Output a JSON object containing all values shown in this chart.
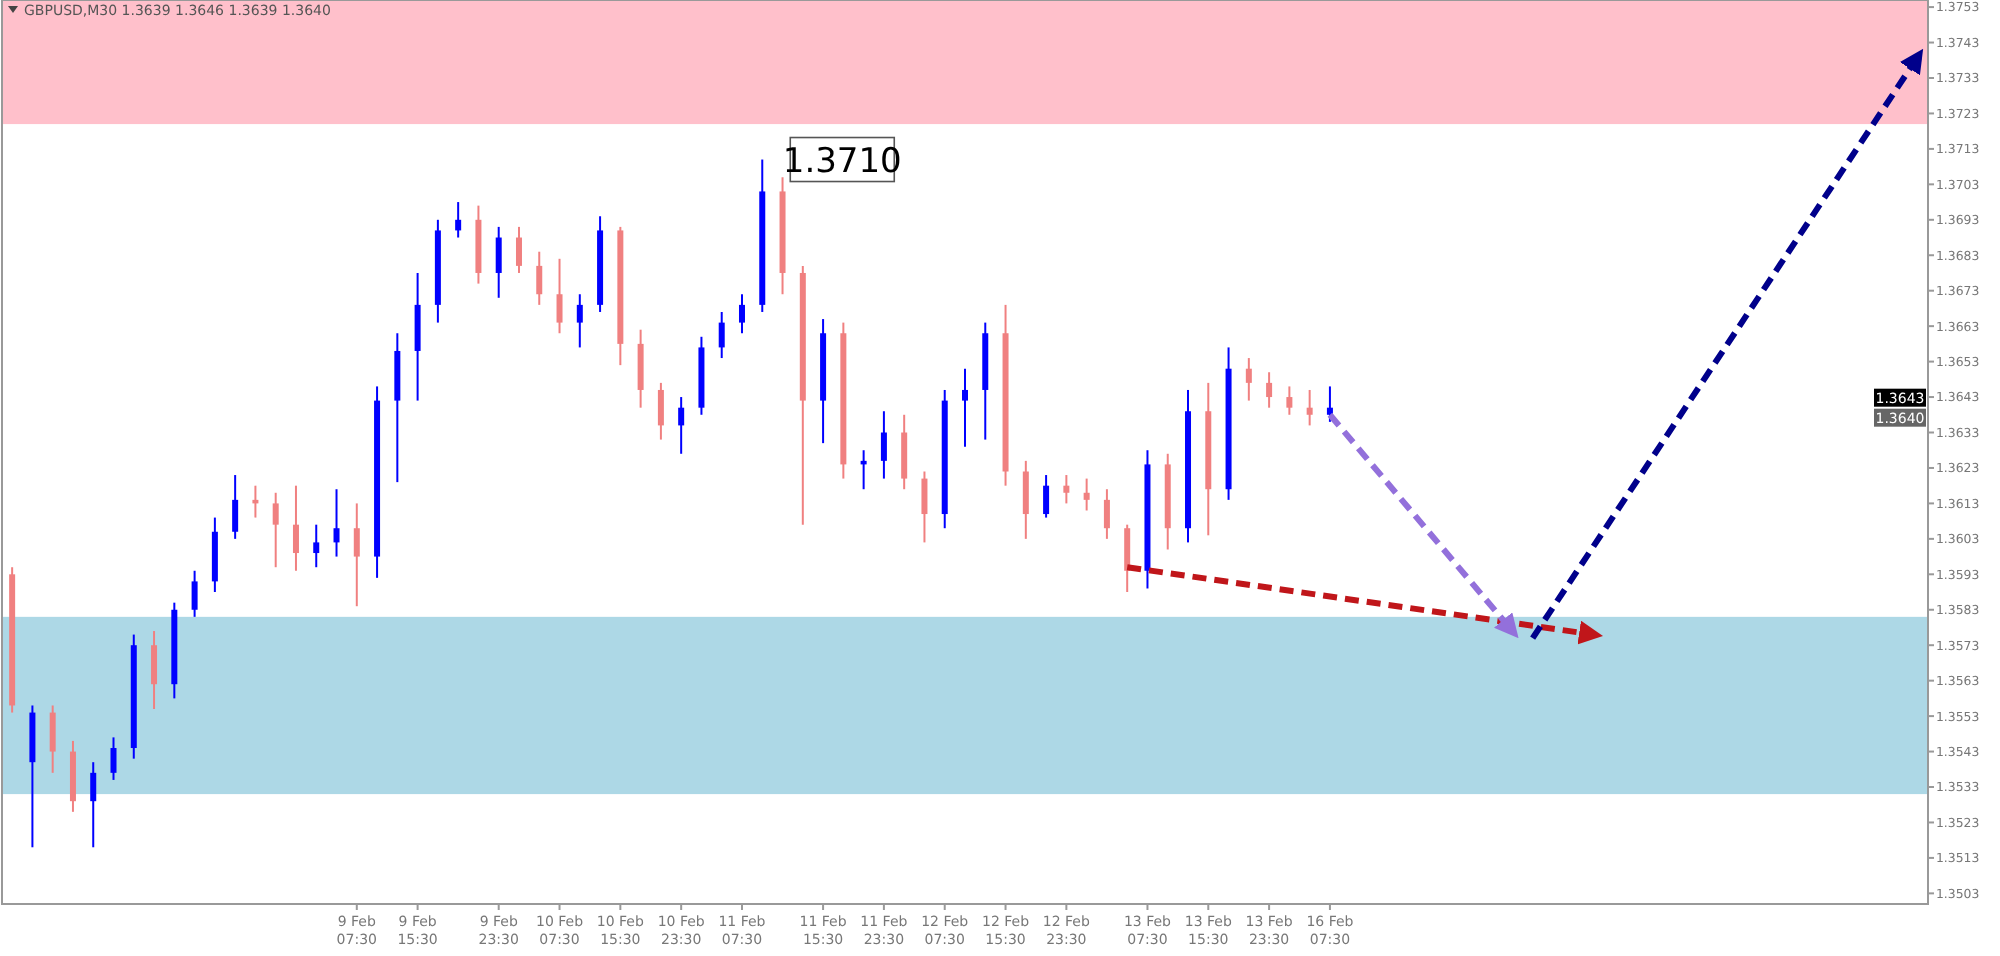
{
  "chart_data": {
    "type": "candlestick",
    "title": "GBPUSD,M30  1.3639 1.3646 1.3639 1.3640",
    "categories": [
      null,
      null,
      null,
      null,
      null,
      null,
      null,
      null,
      null,
      null,
      null,
      null,
      null,
      null,
      null,
      null,
      null,
      "9 Feb 07:30",
      null,
      null,
      "9 Feb 15:30",
      null,
      null,
      null,
      "9 Feb 23:30",
      null,
      null,
      "10 Feb 07:30",
      null,
      null,
      "10 Feb 15:30",
      null,
      null,
      "10 Feb 23:30",
      null,
      null,
      "11 Feb 07:30",
      null,
      null,
      null,
      "11 Feb 15:30",
      null,
      null,
      "11 Feb 23:30",
      null,
      null,
      "12 Feb 07:30",
      null,
      null,
      "12 Feb 15:30",
      null,
      null,
      "12 Feb 23:30",
      null,
      null,
      null,
      "13 Feb 07:30",
      null,
      null,
      "13 Feb 15:30",
      null,
      null,
      "13 Feb 23:30",
      null,
      null,
      "16 Feb 07:30",
      null,
      null,
      null,
      null,
      null,
      null,
      null,
      null,
      null,
      null,
      null,
      null,
      null,
      null,
      null,
      null,
      null,
      null,
      null,
      null,
      null,
      null,
      null,
      null,
      null,
      null,
      null,
      null,
      null
    ],
    "ohlc": [
      [
        1.3593,
        1.3595,
        1.3554,
        1.3556
      ],
      [
        1.354,
        1.3556,
        1.3516,
        1.3554
      ],
      [
        1.3554,
        1.3556,
        1.3537,
        1.3543
      ],
      [
        1.3543,
        1.3546,
        1.3526,
        1.3529
      ],
      [
        1.3529,
        1.354,
        1.3516,
        1.3537
      ],
      [
        1.3537,
        1.3547,
        1.3535,
        1.3544
      ],
      [
        1.3544,
        1.3576,
        1.3541,
        1.3573
      ],
      [
        1.3573,
        1.3577,
        1.3555,
        1.3562
      ],
      [
        1.3562,
        1.3585,
        1.3558,
        1.3583
      ],
      [
        1.3583,
        1.3594,
        1.3581,
        1.3591
      ],
      [
        1.3591,
        1.3609,
        1.3588,
        1.3605
      ],
      [
        1.3605,
        1.3621,
        1.3603,
        1.3614
      ],
      [
        1.3614,
        1.3618,
        1.3609,
        1.3613
      ],
      [
        1.3613,
        1.3616,
        1.3595,
        1.3607
      ],
      [
        1.3607,
        1.3618,
        1.3594,
        1.3599
      ],
      [
        1.3599,
        1.3607,
        1.3595,
        1.3602
      ],
      [
        1.3602,
        1.3617,
        1.3598,
        1.3606
      ],
      [
        1.3606,
        1.3613,
        1.3584,
        1.3598
      ],
      [
        1.3598,
        1.3646,
        1.3592,
        1.3642
      ],
      [
        1.3642,
        1.3661,
        1.3619,
        1.3656
      ],
      [
        1.3656,
        1.3678,
        1.3642,
        1.3669
      ],
      [
        1.3669,
        1.3693,
        1.3664,
        1.369
      ],
      [
        1.369,
        1.3698,
        1.3688,
        1.3693
      ],
      [
        1.3693,
        1.3697,
        1.3675,
        1.3678
      ],
      [
        1.3678,
        1.3691,
        1.3671,
        1.3688
      ],
      [
        1.3688,
        1.3691,
        1.3678,
        1.368
      ],
      [
        1.368,
        1.3684,
        1.3669,
        1.3672
      ],
      [
        1.3672,
        1.3682,
        1.3661,
        1.3664
      ],
      [
        1.3664,
        1.3672,
        1.3657,
        1.3669
      ],
      [
        1.3669,
        1.3694,
        1.3667,
        1.369
      ],
      [
        1.369,
        1.3691,
        1.3652,
        1.3658
      ],
      [
        1.3658,
        1.3662,
        1.364,
        1.3645
      ],
      [
        1.3645,
        1.3647,
        1.3631,
        1.3635
      ],
      [
        1.3635,
        1.3643,
        1.3627,
        1.364
      ],
      [
        1.364,
        1.366,
        1.3638,
        1.3657
      ],
      [
        1.3657,
        1.3667,
        1.3654,
        1.3664
      ],
      [
        1.3664,
        1.3672,
        1.3661,
        1.3669
      ],
      [
        1.3669,
        1.371,
        1.3667,
        1.3701
      ],
      [
        1.3701,
        1.3705,
        1.3672,
        1.3678
      ],
      [
        1.3678,
        1.368,
        1.3607,
        1.3642
      ],
      [
        1.3642,
        1.3665,
        1.363,
        1.3661
      ],
      [
        1.3661,
        1.3664,
        1.362,
        1.3624
      ],
      [
        1.3624,
        1.3628,
        1.3617,
        1.3625
      ],
      [
        1.3625,
        1.3639,
        1.362,
        1.3633
      ],
      [
        1.3633,
        1.3638,
        1.3617,
        1.362
      ],
      [
        1.362,
        1.3622,
        1.3602,
        1.361
      ],
      [
        1.361,
        1.3645,
        1.3606,
        1.3642
      ],
      [
        1.3642,
        1.3651,
        1.3629,
        1.3645
      ],
      [
        1.3645,
        1.3664,
        1.3631,
        1.3661
      ],
      [
        1.3661,
        1.3669,
        1.3618,
        1.3622
      ],
      [
        1.3622,
        1.3625,
        1.3603,
        1.361
      ],
      [
        1.361,
        1.3621,
        1.3609,
        1.3618
      ],
      [
        1.3618,
        1.3621,
        1.3613,
        1.3616
      ],
      [
        1.3616,
        1.362,
        1.3611,
        1.3614
      ],
      [
        1.3614,
        1.3617,
        1.3603,
        1.3606
      ],
      [
        1.3606,
        1.3607,
        1.3588,
        1.3594
      ],
      [
        1.3594,
        1.3628,
        1.3589,
        1.3624
      ],
      [
        1.3624,
        1.3627,
        1.36,
        1.3606
      ],
      [
        1.3606,
        1.3645,
        1.3602,
        1.3639
      ],
      [
        1.3639,
        1.3647,
        1.3604,
        1.3617
      ],
      [
        1.3617,
        1.3657,
        1.3614,
        1.3651
      ],
      [
        1.3651,
        1.3654,
        1.3642,
        1.3647
      ],
      [
        1.3647,
        1.365,
        1.364,
        1.3643
      ],
      [
        1.3643,
        1.3646,
        1.3638,
        1.364
      ],
      [
        1.364,
        1.3645,
        1.3635,
        1.3638
      ],
      [
        1.3638,
        1.3646,
        1.3636,
        1.364
      ],
      null,
      null,
      null,
      null,
      null,
      null,
      null,
      null,
      null,
      null,
      null,
      null,
      null,
      null,
      null,
      null,
      null,
      null,
      null,
      null,
      null,
      null,
      null,
      null,
      null,
      null,
      null,
      null,
      null
    ],
    "colors": [
      "#f08080",
      "#0000ff",
      "#f08080",
      "#f08080",
      "#0000ff",
      "#0000ff",
      "#0000ff",
      "#f08080",
      "#0000ff",
      "#0000ff",
      "#0000ff",
      "#0000ff",
      "#f08080",
      "#f08080",
      "#f08080",
      "#0000ff",
      "#0000ff",
      "#f08080",
      "#0000ff",
      "#0000ff",
      "#0000ff",
      "#0000ff",
      "#0000ff",
      "#f08080",
      "#0000ff",
      "#f08080",
      "#f08080",
      "#f08080",
      "#0000ff",
      "#0000ff",
      "#f08080",
      "#f08080",
      "#f08080",
      "#0000ff",
      "#0000ff",
      "#0000ff",
      "#0000ff",
      "#0000ff",
      "#f08080",
      "#f08080",
      "#0000ff",
      "#f08080",
      "#0000ff",
      "#0000ff",
      "#f08080",
      "#f08080",
      "#0000ff",
      "#0000ff",
      "#0000ff",
      "#f08080",
      "#f08080",
      "#0000ff",
      "#f08080",
      "#f08080",
      "#f08080",
      "#f08080",
      "#0000ff",
      "#f08080",
      "#0000ff",
      "#f08080",
      "#0000ff",
      "#f08080",
      "#f08080",
      "#f08080",
      "#f08080",
      "#0000ff",
      null,
      null,
      null,
      null,
      null,
      null,
      null,
      null,
      null,
      null,
      null,
      null,
      null,
      null,
      null,
      null,
      null,
      null,
      null,
      null,
      null,
      null,
      null,
      null,
      null,
      null,
      null,
      null,
      null
    ],
    "series": [
      {
        "type": "line",
        "values": [
          null,
          null,
          null,
          null,
          null,
          null,
          null,
          null,
          null,
          null,
          null,
          null,
          null,
          null,
          null,
          null,
          null,
          null,
          null,
          null,
          null,
          null,
          null,
          null,
          null,
          null,
          null,
          null,
          null,
          null,
          null,
          null,
          null,
          null,
          null,
          null,
          null,
          null,
          null,
          null,
          null,
          null,
          null,
          null,
          null,
          null,
          null,
          null,
          null,
          null,
          null,
          null,
          null,
          null,
          null,
          1.3595,
          null,
          null,
          null,
          null,
          null,
          null,
          null,
          null,
          null,
          null,
          null,
          null,
          null,
          null,
          null,
          null,
          null,
          null,
          null,
          null,
          null,
          null,
          1.3576,
          null,
          null,
          null,
          null,
          null,
          null,
          null,
          null,
          null,
          null,
          null,
          null,
          null,
          null,
          null,
          null
        ],
        "color": "#c0161a",
        "line_style": "dashed"
      },
      {
        "type": "line",
        "values": [
          null,
          null,
          null,
          null,
          null,
          null,
          null,
          null,
          null,
          null,
          null,
          null,
          null,
          null,
          null,
          null,
          null,
          null,
          null,
          null,
          null,
          null,
          null,
          null,
          null,
          null,
          null,
          null,
          null,
          null,
          null,
          null,
          null,
          null,
          null,
          null,
          null,
          null,
          null,
          null,
          null,
          null,
          null,
          null,
          null,
          null,
          null,
          null,
          null,
          null,
          null,
          null,
          null,
          null,
          null,
          null,
          null,
          null,
          null,
          null,
          null,
          null,
          null,
          null,
          null,
          1.3638,
          null,
          null,
          null,
          null,
          null,
          null,
          null,
          null,
          1.3577,
          null,
          null,
          null,
          null,
          null,
          null,
          null,
          null,
          null,
          null,
          null,
          null,
          null,
          null,
          null,
          null,
          null,
          null,
          null,
          null
        ],
        "color": "#9370db",
        "line_style": "dashed"
      },
      {
        "type": "line",
        "values": [
          null,
          null,
          null,
          null,
          null,
          null,
          null,
          null,
          null,
          null,
          null,
          null,
          null,
          null,
          null,
          null,
          null,
          null,
          null,
          null,
          null,
          null,
          null,
          null,
          null,
          null,
          null,
          null,
          null,
          null,
          null,
          null,
          null,
          null,
          null,
          null,
          null,
          null,
          null,
          null,
          null,
          null,
          null,
          null,
          null,
          null,
          null,
          null,
          null,
          null,
          null,
          null,
          null,
          null,
          null,
          null,
          null,
          null,
          null,
          null,
          null,
          null,
          null,
          null,
          null,
          null,
          null,
          null,
          null,
          null,
          null,
          null,
          null,
          null,
          null,
          1.3575,
          null,
          null,
          null,
          null,
          null,
          null,
          null,
          null,
          null,
          null,
          null,
          null,
          null,
          null,
          null,
          null,
          null,
          null,
          1.3739
        ],
        "color": "#00008b",
        "line_style": "dashed"
      }
    ],
    "bands": [
      {
        "axis": "y",
        "from": 1.372,
        "to": 1.3755,
        "color": "#ffc0cb"
      },
      {
        "axis": "y",
        "from": 1.3531,
        "to": 1.3581,
        "color": "#add8e6"
      }
    ],
    "annotations": [
      "1.3710",
      "1.3643",
      "1.3640"
    ],
    "ylim": [
      1.35,
      1.3755
    ],
    "yticks": [
      1.3503,
      1.3513,
      1.3523,
      1.3533,
      1.3543,
      1.3553,
      1.3563,
      1.3573,
      1.3583,
      1.3593,
      1.3603,
      1.3613,
      1.3623,
      1.3633,
      1.3643,
      1.3653,
      1.3663,
      1.3673,
      1.3683,
      1.3693,
      1.3703,
      1.3713,
      1.3723,
      1.3733,
      1.3743,
      1.3753
    ]
  }
}
